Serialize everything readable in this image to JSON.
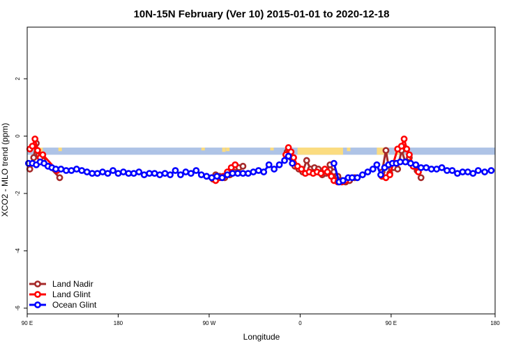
{
  "chart_data": {
    "type": "line",
    "title": "10N-15N February (Ver 10)   2015-01-01 to 2020-12-18",
    "xlabel": "Longitude",
    "ylabel": "XCO2 - MLO trend (ppm)",
    "xlim": [
      -90,
      270
    ],
    "ylim": [
      -6.2,
      3.8
    ],
    "x_ticks": [
      {
        "value": -90,
        "label": "90 E"
      },
      {
        "value": -20,
        "label": "180"
      },
      {
        "value": 50,
        "label": "90 W"
      },
      {
        "value": 120,
        "label": "0"
      },
      {
        "value": 190,
        "label": "90 E"
      },
      {
        "value": 270,
        "label": "180"
      }
    ],
    "y_ticks": [
      {
        "value": 2,
        "label": "2"
      },
      {
        "value": 0,
        "label": "0"
      },
      {
        "value": -2,
        "label": "-2"
      },
      {
        "value": -4,
        "label": "-4"
      },
      {
        "value": -6,
        "label": "-6"
      }
    ],
    "grid": false,
    "legend_position": "bottom-left",
    "background_map": {
      "ocean_color": "#aec3e6",
      "land_color": "#fbdc80",
      "band_y": [
        -0.65,
        -0.4
      ]
    },
    "series": [
      {
        "name": "Land Nadir",
        "color": "#a52a2a",
        "points": [
          [
            -88,
            -1.15
          ],
          [
            -85,
            -0.75
          ],
          [
            -83,
            -0.25
          ],
          [
            -81,
            -0.65
          ],
          [
            -78,
            -0.85
          ],
          [
            -65,
            -1.45
          ],
          [
            53,
            -1.5
          ],
          [
            55,
            -1.35
          ],
          [
            58,
            -1.4
          ],
          [
            62,
            -1.45
          ],
          [
            66,
            -1.35
          ],
          [
            69,
            -1.25
          ],
          [
            73,
            -1.1
          ],
          [
            76,
            -1.05
          ],
          [
            110,
            -0.55
          ],
          [
            113,
            -0.75
          ],
          [
            116,
            -1.05
          ],
          [
            119,
            -1.15
          ],
          [
            122,
            -1.25
          ],
          [
            125,
            -0.85
          ],
          [
            128,
            -1.15
          ],
          [
            131,
            -1.1
          ],
          [
            134,
            -1.15
          ],
          [
            137,
            -1.35
          ],
          [
            140,
            -1.3
          ],
          [
            143,
            -1.0
          ],
          [
            146,
            -1.25
          ],
          [
            149,
            -1.4
          ],
          [
            152,
            -1.55
          ],
          [
            155,
            -1.6
          ],
          [
            158,
            -1.55
          ],
          [
            162,
            -1.45
          ],
          [
            183,
            -1.25
          ],
          [
            186,
            -0.5
          ],
          [
            189,
            -1.3
          ],
          [
            192,
            -1.1
          ],
          [
            195,
            -1.15
          ],
          [
            198,
            -0.5
          ],
          [
            201,
            -0.9
          ],
          [
            204,
            -0.75
          ],
          [
            207,
            -1.05
          ],
          [
            210,
            -1.2
          ],
          [
            213,
            -1.45
          ]
        ]
      },
      {
        "name": "Land Glint",
        "color": "#ff0000",
        "points": [
          [
            -88,
            -0.45
          ],
          [
            -86,
            -0.35
          ],
          [
            -84,
            -0.1
          ],
          [
            -82,
            -0.5
          ],
          [
            -80,
            -0.75
          ],
          [
            -78,
            -0.65
          ],
          [
            -67,
            -1.2
          ],
          [
            52,
            -1.45
          ],
          [
            55,
            -1.55
          ],
          [
            58,
            -1.45
          ],
          [
            61,
            -1.4
          ],
          [
            64,
            -1.25
          ],
          [
            67,
            -1.1
          ],
          [
            70,
            -1.0
          ],
          [
            109,
            -0.65
          ],
          [
            111,
            -0.4
          ],
          [
            113,
            -0.55
          ],
          [
            115,
            -0.75
          ],
          [
            118,
            -1.05
          ],
          [
            121,
            -1.15
          ],
          [
            124,
            -1.3
          ],
          [
            127,
            -1.25
          ],
          [
            130,
            -1.3
          ],
          [
            133,
            -1.25
          ],
          [
            136,
            -1.3
          ],
          [
            139,
            -1.15
          ],
          [
            141,
            -1.25
          ],
          [
            144,
            -1.4
          ],
          [
            146,
            -1.55
          ],
          [
            149,
            -1.6
          ],
          [
            152,
            -1.6
          ],
          [
            155,
            -1.55
          ],
          [
            183,
            -1.4
          ],
          [
            186,
            -1.45
          ],
          [
            189,
            -1.35
          ],
          [
            195,
            -0.45
          ],
          [
            198,
            -0.35
          ],
          [
            200,
            -0.1
          ],
          [
            202,
            -0.45
          ],
          [
            204,
            -0.65
          ],
          [
            207,
            -1.05
          ],
          [
            211,
            -1.25
          ]
        ]
      },
      {
        "name": "Ocean Glint",
        "color": "#0000ff",
        "points": [
          [
            -89,
            -0.95
          ],
          [
            -86,
            -0.95
          ],
          [
            -83,
            -1.0
          ],
          [
            -80,
            -0.9
          ],
          [
            -77,
            -0.95
          ],
          [
            -74,
            -1.05
          ],
          [
            -71,
            -1.1
          ],
          [
            -68,
            -1.15
          ],
          [
            -64,
            -1.15
          ],
          [
            -60,
            -1.2
          ],
          [
            -56,
            -1.2
          ],
          [
            -52,
            -1.15
          ],
          [
            -48,
            -1.2
          ],
          [
            -44,
            -1.25
          ],
          [
            -40,
            -1.3
          ],
          [
            -36,
            -1.3
          ],
          [
            -32,
            -1.25
          ],
          [
            -28,
            -1.3
          ],
          [
            -24,
            -1.2
          ],
          [
            -20,
            -1.3
          ],
          [
            -16,
            -1.25
          ],
          [
            -12,
            -1.3
          ],
          [
            -8,
            -1.3
          ],
          [
            -4,
            -1.25
          ],
          [
            0,
            -1.35
          ],
          [
            4,
            -1.3
          ],
          [
            8,
            -1.3
          ],
          [
            12,
            -1.35
          ],
          [
            16,
            -1.3
          ],
          [
            20,
            -1.35
          ],
          [
            24,
            -1.2
          ],
          [
            28,
            -1.35
          ],
          [
            32,
            -1.25
          ],
          [
            36,
            -1.3
          ],
          [
            40,
            -1.2
          ],
          [
            44,
            -1.35
          ],
          [
            48,
            -1.4
          ],
          [
            52,
            -1.45
          ],
          [
            56,
            -1.4
          ],
          [
            60,
            -1.45
          ],
          [
            64,
            -1.35
          ],
          [
            68,
            -1.3
          ],
          [
            72,
            -1.3
          ],
          [
            76,
            -1.3
          ],
          [
            80,
            -1.3
          ],
          [
            84,
            -1.25
          ],
          [
            88,
            -1.2
          ],
          [
            92,
            -1.25
          ],
          [
            96,
            -1.0
          ],
          [
            100,
            -1.15
          ],
          [
            104,
            -1.0
          ],
          [
            108,
            -0.85
          ],
          [
            111,
            -0.7
          ],
          [
            114,
            -0.95
          ],
          [
            146,
            -0.95
          ],
          [
            150,
            -1.6
          ],
          [
            153,
            -1.55
          ],
          [
            157,
            -1.45
          ],
          [
            160,
            -1.45
          ],
          [
            164,
            -1.45
          ],
          [
            168,
            -1.35
          ],
          [
            172,
            -1.25
          ],
          [
            176,
            -1.15
          ],
          [
            179,
            -1.0
          ],
          [
            182,
            -1.35
          ],
          [
            185,
            -1.1
          ],
          [
            188,
            -1.0
          ],
          [
            191,
            -0.95
          ],
          [
            194,
            -0.95
          ],
          [
            197,
            -0.9
          ],
          [
            201,
            -0.9
          ],
          [
            205,
            -0.95
          ],
          [
            209,
            -1.0
          ],
          [
            213,
            -1.1
          ],
          [
            217,
            -1.1
          ],
          [
            221,
            -1.15
          ],
          [
            225,
            -1.15
          ],
          [
            229,
            -1.1
          ],
          [
            233,
            -1.2
          ],
          [
            237,
            -1.2
          ],
          [
            241,
            -1.3
          ],
          [
            245,
            -1.25
          ],
          [
            249,
            -1.25
          ],
          [
            253,
            -1.3
          ],
          [
            257,
            -1.2
          ],
          [
            262,
            -1.25
          ],
          [
            267,
            -1.2
          ]
        ]
      }
    ]
  }
}
